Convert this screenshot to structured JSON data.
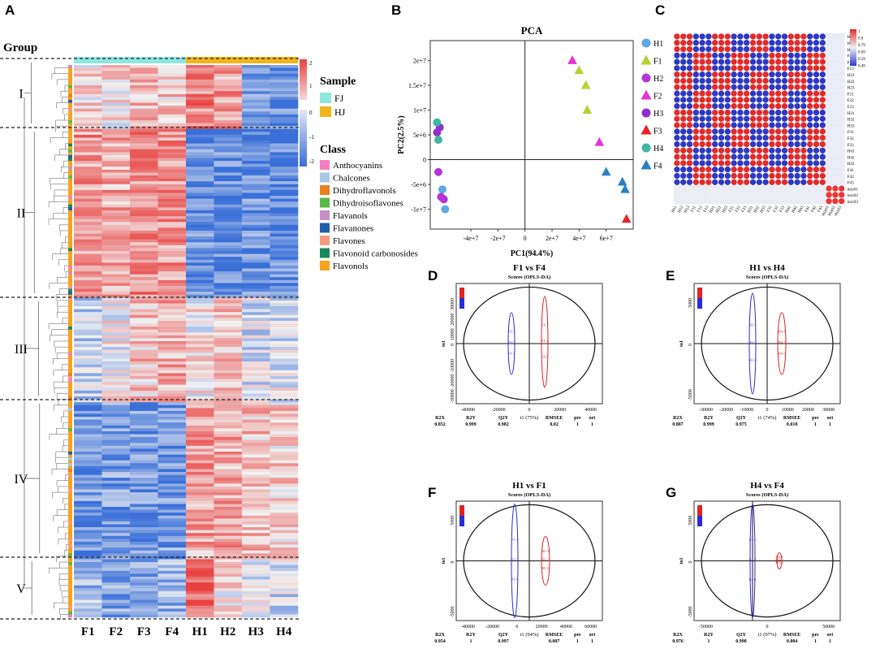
{
  "panels": {
    "A": "A",
    "B": "B",
    "C": "C",
    "D": "D",
    "E": "E",
    "F": "F",
    "G": "G"
  },
  "heatmap": {
    "group_label": "Group",
    "groups": [
      "I",
      "II",
      "III",
      "IV",
      "V"
    ],
    "columns": [
      "F1",
      "F2",
      "F3",
      "F4",
      "H1",
      "H2",
      "H3",
      "H4"
    ],
    "scale_top": [
      "2",
      "1"
    ],
    "scale_bottom": [
      "0",
      "-1",
      "-2"
    ],
    "colors": {
      "high": "#e8413f",
      "mid": "#f2f2f2",
      "low": "#3a6fd8",
      "fj": "#8ee6df",
      "hj": "#f2b418"
    }
  },
  "sample_legend": {
    "title": "Sample",
    "items": [
      {
        "label": "FJ",
        "color": "#8ee6df"
      },
      {
        "label": "HJ",
        "color": "#f2b418"
      }
    ]
  },
  "class_legend": {
    "title": "Class",
    "items": [
      {
        "label": "Anthocyanins",
        "color": "#f27fc1"
      },
      {
        "label": "Chalcones",
        "color": "#a8c8ea"
      },
      {
        "label": "Dihydroflavonols",
        "color": "#e8801e"
      },
      {
        "label": "Dihydroisoflavones",
        "color": "#5ab848"
      },
      {
        "label": "Flavanols",
        "color": "#c58fc4"
      },
      {
        "label": "Flavanones",
        "color": "#1f5fa8"
      },
      {
        "label": "Flavones",
        "color": "#f49a84"
      },
      {
        "label": "Flavonoid carbonosides",
        "color": "#17895a"
      },
      {
        "label": "Flavonols",
        "color": "#f5a31e"
      }
    ]
  },
  "chart_data": [
    {
      "type": "heatmap",
      "panel": "A",
      "title": "",
      "columns": [
        "F1",
        "F2",
        "F3",
        "F4",
        "H1",
        "H2",
        "H3",
        "H4"
      ],
      "groups": [
        "I",
        "II",
        "III",
        "IV",
        "V"
      ],
      "color_range": [
        -2,
        2
      ],
      "annotation": [
        "FJ",
        "HJ"
      ]
    },
    {
      "type": "scatter",
      "panel": "B",
      "title": "PCA",
      "xlabel": "PC1(94.4%)",
      "ylabel": "PC2(2.5%)",
      "xlim": [
        -70000000.0,
        80000000.0
      ],
      "ylim": [
        -14000000.0,
        24000000.0
      ],
      "xticks": [
        "-4e+7",
        "-2e+7",
        "0",
        "2e+7",
        "4e+7",
        "6e+7"
      ],
      "yticks": [
        "2e+7",
        "1.5e+7",
        "1e+7",
        "5e+6",
        "0",
        "-5e+6",
        "-1e+7"
      ],
      "series": [
        {
          "name": "H1",
          "marker": "circle",
          "color": "#5ba9e6",
          "points": [
            [
              -61000000.0,
              -6000000.0
            ],
            [
              -59000000.0,
              -10000000.0
            ]
          ]
        },
        {
          "name": "F1",
          "marker": "triangle",
          "color": "#b5d233",
          "points": [
            [
              45000000.0,
              15000000.0
            ],
            [
              40000000.0,
              18000000.0
            ],
            [
              46000000.0,
              10000000.0
            ]
          ]
        },
        {
          "name": "H2",
          "marker": "circle",
          "color": "#b535d8",
          "points": [
            [
              -64000000.0,
              -2500000.0
            ],
            [
              -62000000.0,
              -7500000.0
            ],
            [
              -60000000.0,
              -8000000.0
            ]
          ]
        },
        {
          "name": "F2",
          "marker": "triangle",
          "color": "#e633d4",
          "points": [
            [
              35000000.0,
              20000000.0
            ],
            [
              55000000.0,
              3500000.0
            ]
          ]
        },
        {
          "name": "H3",
          "marker": "circle",
          "color": "#8e2fd1",
          "points": [
            [
              -65000000.0,
              5500000.0
            ],
            [
              -63000000.0,
              6500000.0
            ]
          ]
        },
        {
          "name": "F3",
          "marker": "triangle",
          "color": "#e8232a",
          "points": [
            [
              75000000.0,
              -12000000.0
            ]
          ]
        },
        {
          "name": "H4",
          "marker": "circle",
          "color": "#3fb6a6",
          "points": [
            [
              -64000000.0,
              4000000.0
            ],
            [
              -65000000.0,
              7500000.0
            ]
          ]
        },
        {
          "name": "F4",
          "marker": "triangle",
          "color": "#2b7fbf",
          "points": [
            [
              60000000.0,
              -2500000.0
            ],
            [
              72000000.0,
              -4500000.0
            ],
            [
              74000000.0,
              -6000000.0
            ]
          ]
        }
      ]
    },
    {
      "type": "heatmap",
      "panel": "C",
      "title": "",
      "rows": [
        "H11",
        "H12",
        "H13",
        "F11",
        "F12",
        "F13",
        "H21",
        "H22",
        "H23",
        "F21",
        "F22",
        "F23",
        "H31",
        "H32",
        "H33",
        "F31",
        "F32",
        "F33",
        "H41",
        "H42",
        "H43",
        "F41",
        "F42",
        "F43",
        "mix01",
        "mix02",
        "mix03"
      ],
      "columns": [
        "H11",
        "H12",
        "H13",
        "F11",
        "F12",
        "F13",
        "H21",
        "H22",
        "H23",
        "F21",
        "F22",
        "F23",
        "H31",
        "H32",
        "H33",
        "F31",
        "F32",
        "F33",
        "H41",
        "H42",
        "H43",
        "F41",
        "F42",
        "F43",
        "mix01",
        "mix02",
        "mix03"
      ],
      "color_scale": [
        "1",
        "0.9",
        "0.79",
        "0.69",
        "0.59",
        "0.49"
      ]
    },
    {
      "type": "scatter",
      "panel": "D",
      "title": "F1 vs F4",
      "subtitle": "Scores (OPLS-DA)",
      "xlabel": "t1 (75%)",
      "ylabel": "to1",
      "xticks": [
        "-40000",
        "-20000",
        "0",
        "20000",
        "40000"
      ],
      "yticks": [
        "30000",
        "20000",
        "10000",
        "0",
        "-10000",
        "-20000",
        "-30000"
      ],
      "stats": {
        "labels": [
          "R2X",
          "R2Y",
          "Q2Y",
          "RMSEE",
          "pre",
          "ort"
        ],
        "values": [
          "0.852",
          "0.999",
          "0.982",
          "0.02",
          "1",
          "1"
        ]
      },
      "groups": [
        {
          "name": "F1",
          "color": "#2b2bd9",
          "points": [
            "F1-1",
            "F1-2",
            "F1-3"
          ]
        },
        {
          "name": "F4",
          "color": "#e02323",
          "points": [
            "F4-1",
            "F4-2",
            "F4-3"
          ]
        }
      ]
    },
    {
      "type": "scatter",
      "panel": "E",
      "title": "H1 vs H4",
      "subtitle": "Scores (OPLS-DA)",
      "xlabel": "t1 (74%)",
      "ylabel": "to1",
      "xticks": [
        "-30000",
        "-20000",
        "-10000",
        "0",
        "10000",
        "20000",
        "30000"
      ],
      "yticks": [
        "5000",
        "0",
        "-5000"
      ],
      "stats": {
        "labels": [
          "R2X",
          "R2Y",
          "Q2Y",
          "RMSEE",
          "pre",
          "ort"
        ],
        "values": [
          "0.887",
          "0.999",
          "0.975",
          "0.018",
          "1",
          "1"
        ]
      },
      "groups": [
        {
          "name": "H1",
          "color": "#2b2bd9",
          "points": [
            "H1-1",
            "H1-2",
            "H1-3"
          ]
        },
        {
          "name": "H4",
          "color": "#e02323",
          "points": [
            "H4-1",
            "H4-2",
            "H4-3"
          ]
        }
      ]
    },
    {
      "type": "scatter",
      "panel": "F",
      "title": "H1 vs F1",
      "subtitle": "Scores (OPLS-DA)",
      "xlabel": "t1 (94%)",
      "ylabel": "to1",
      "xticks": [
        "-40000",
        "-20000",
        "0",
        "20000",
        "40000",
        "60000"
      ],
      "yticks": [
        "5000",
        "0",
        "-5000"
      ],
      "stats": {
        "labels": [
          "R2X",
          "R2Y",
          "Q2Y",
          "RMSEE",
          "pre",
          "ort"
        ],
        "values": [
          "0.954",
          "1",
          "0.997",
          "0.007",
          "1",
          "1"
        ]
      },
      "groups": [
        {
          "name": "F1",
          "color": "#2b2bd9",
          "points": [
            "F1-1",
            "F1-2",
            "F1-3"
          ]
        },
        {
          "name": "H1",
          "color": "#e02323",
          "points": [
            "H1-1",
            "H1-2",
            "H1-3"
          ]
        }
      ]
    },
    {
      "type": "scatter",
      "panel": "G",
      "title": "H4 vs F4",
      "subtitle": "Scores (OPLS-DA)",
      "xlabel": "t1 (97%)",
      "ylabel": "to1",
      "xticks": [
        "-50000",
        "0",
        "50000"
      ],
      "yticks": [
        "5000",
        "0",
        "-5000"
      ],
      "stats": {
        "labels": [
          "R2X",
          "R2Y",
          "Q2Y",
          "RMSEE",
          "pre",
          "ort"
        ],
        "values": [
          "0.976",
          "1",
          "0.998",
          "0.004",
          "1",
          "1"
        ]
      },
      "groups": [
        {
          "name": "F4",
          "color": "#2b2bd9",
          "points": [
            "F4-1",
            "F4-2",
            "F4-3"
          ]
        },
        {
          "name": "H4",
          "color": "#e02323",
          "points": [
            "H4-1",
            "H4-2",
            "H4-3"
          ]
        }
      ]
    }
  ]
}
